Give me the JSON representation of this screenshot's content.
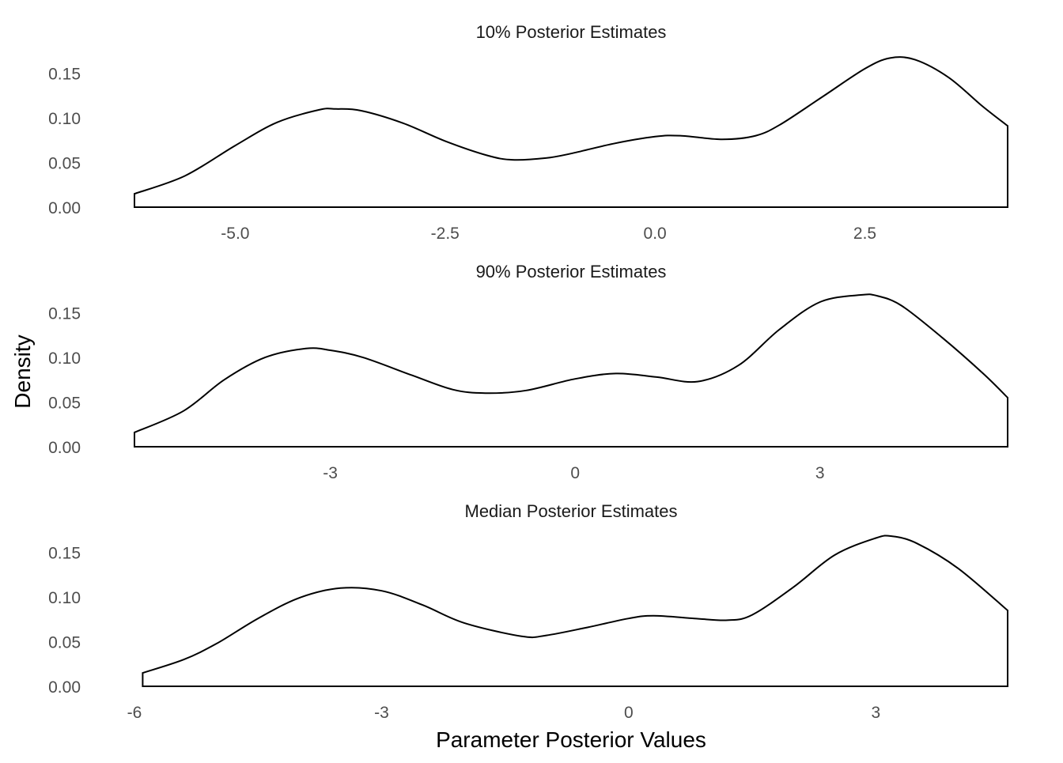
{
  "ylabel": "Density",
  "xlabel": "Parameter Posterior Values",
  "chart_data": [
    {
      "type": "area",
      "title": "10% Posterior Estimates",
      "xlabel": "",
      "ylabel": "Density",
      "xlim": [
        -6.2,
        4.2
      ],
      "ylim": [
        0,
        0.17
      ],
      "xticks": [
        -5.0,
        -2.5,
        0.0,
        2.5
      ],
      "xtick_labels": [
        "-5.0",
        "-2.5",
        "0.0",
        "2.5"
      ],
      "yticks": [
        0,
        0.05,
        0.1,
        0.15
      ],
      "ytick_labels": [
        "0.00",
        "0.05",
        "0.10",
        "0.15"
      ],
      "grid": false,
      "x": [
        -6.2,
        -5.6,
        -5.0,
        -4.5,
        -4.0,
        -3.8,
        -3.5,
        -3.0,
        -2.5,
        -2.0,
        -1.7,
        -1.3,
        -1.0,
        -0.5,
        0.0,
        0.3,
        0.8,
        1.2,
        1.5,
        2.0,
        2.5,
        2.8,
        3.1,
        3.5,
        3.9,
        4.2
      ],
      "y": [
        0.015,
        0.035,
        0.069,
        0.095,
        0.109,
        0.11,
        0.108,
        0.094,
        0.074,
        0.058,
        0.053,
        0.055,
        0.06,
        0.071,
        0.079,
        0.08,
        0.076,
        0.08,
        0.093,
        0.124,
        0.155,
        0.167,
        0.165,
        0.145,
        0.113,
        0.091
      ]
    },
    {
      "type": "area",
      "title": "90% Posterior Estimates",
      "xlabel": "",
      "ylabel": "Density",
      "xlim": [
        -5.4,
        5.3
      ],
      "ylim": [
        0,
        0.17
      ],
      "xticks": [
        -3,
        0,
        3
      ],
      "xtick_labels": [
        "-3",
        "0",
        "3"
      ],
      "yticks": [
        0,
        0.05,
        0.1,
        0.15
      ],
      "ytick_labels": [
        "0.00",
        "0.05",
        "0.10",
        "0.15"
      ],
      "grid": false,
      "x": [
        -5.4,
        -4.8,
        -4.3,
        -3.8,
        -3.3,
        -3.0,
        -2.6,
        -2.0,
        -1.5,
        -1.1,
        -0.6,
        0.0,
        0.5,
        1.0,
        1.5,
        2.0,
        2.5,
        3.0,
        3.5,
        3.7,
        4.0,
        4.5,
        5.0,
        5.3
      ],
      "y": [
        0.016,
        0.04,
        0.075,
        0.1,
        0.11,
        0.108,
        0.1,
        0.08,
        0.064,
        0.06,
        0.063,
        0.076,
        0.082,
        0.078,
        0.073,
        0.091,
        0.131,
        0.162,
        0.17,
        0.169,
        0.158,
        0.122,
        0.082,
        0.055
      ]
    },
    {
      "type": "area",
      "title": "Median Posterior Estimates",
      "xlabel": "Parameter Posterior Values",
      "ylabel": "Density",
      "xlim": [
        -6.0,
        4.6
      ],
      "ylim": [
        0,
        0.17
      ],
      "xticks": [
        -6,
        -3,
        0,
        3
      ],
      "xtick_labels": [
        "-6",
        "-3",
        "0",
        "3"
      ],
      "yticks": [
        0,
        0.05,
        0.1,
        0.15
      ],
      "ytick_labels": [
        "0.00",
        "0.05",
        "0.10",
        "0.15"
      ],
      "grid": false,
      "x": [
        -5.9,
        -5.4,
        -5.0,
        -4.5,
        -4.0,
        -3.5,
        -3.0,
        -2.5,
        -2.0,
        -1.3,
        -1.0,
        -0.5,
        0.0,
        0.3,
        0.8,
        1.2,
        1.5,
        2.0,
        2.5,
        3.0,
        3.2,
        3.5,
        4.0,
        4.6
      ],
      "y": [
        0.015,
        0.03,
        0.048,
        0.076,
        0.099,
        0.11,
        0.107,
        0.091,
        0.071,
        0.056,
        0.057,
        0.066,
        0.076,
        0.079,
        0.076,
        0.074,
        0.08,
        0.111,
        0.147,
        0.166,
        0.168,
        0.16,
        0.132,
        0.085
      ]
    }
  ]
}
